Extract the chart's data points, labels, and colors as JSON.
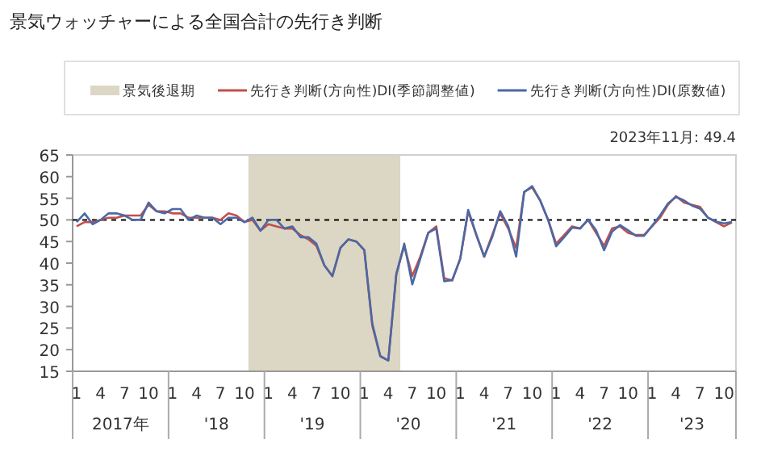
{
  "chart_data": {
    "type": "line",
    "title": "景気ウォッチャーによる全国合計の先行き判断",
    "x": [
      "2017-01",
      "2017-02",
      "2017-03",
      "2017-04",
      "2017-05",
      "2017-06",
      "2017-07",
      "2017-08",
      "2017-09",
      "2017-10",
      "2017-11",
      "2017-12",
      "2018-01",
      "2018-02",
      "2018-03",
      "2018-04",
      "2018-05",
      "2018-06",
      "2018-07",
      "2018-08",
      "2018-09",
      "2018-10",
      "2018-11",
      "2018-12",
      "2019-01",
      "2019-02",
      "2019-03",
      "2019-04",
      "2019-05",
      "2019-06",
      "2019-07",
      "2019-08",
      "2019-09",
      "2019-10",
      "2019-11",
      "2019-12",
      "2020-01",
      "2020-02",
      "2020-03",
      "2020-04",
      "2020-05",
      "2020-06",
      "2020-07",
      "2020-08",
      "2020-09",
      "2020-10",
      "2020-11",
      "2020-12",
      "2021-01",
      "2021-02",
      "2021-03",
      "2021-04",
      "2021-05",
      "2021-06",
      "2021-07",
      "2021-08",
      "2021-09",
      "2021-10",
      "2021-11",
      "2021-12",
      "2022-01",
      "2022-02",
      "2022-03",
      "2022-04",
      "2022-05",
      "2022-06",
      "2022-07",
      "2022-08",
      "2022-09",
      "2022-10",
      "2022-11",
      "2022-12",
      "2023-01",
      "2023-02",
      "2023-03",
      "2023-04",
      "2023-05",
      "2023-06",
      "2023-07",
      "2023-08",
      "2023-09",
      "2023-10",
      "2023-11"
    ],
    "xlim": [
      "2017-01",
      "2023-11"
    ],
    "xticks": [
      {
        "value": "2017-01",
        "label": "1"
      },
      {
        "value": "2017-04",
        "label": "4"
      },
      {
        "value": "2017-07",
        "label": "7"
      },
      {
        "value": "2017-10",
        "label": "10"
      },
      {
        "value": "2018-01",
        "label": "1"
      },
      {
        "value": "2018-04",
        "label": "4"
      },
      {
        "value": "2018-07",
        "label": "7"
      },
      {
        "value": "2018-10",
        "label": "10"
      },
      {
        "value": "2019-01",
        "label": "1"
      },
      {
        "value": "2019-04",
        "label": "4"
      },
      {
        "value": "2019-07",
        "label": "7"
      },
      {
        "value": "2019-10",
        "label": "10"
      },
      {
        "value": "2020-01",
        "label": "1"
      },
      {
        "value": "2020-04",
        "label": "4"
      },
      {
        "value": "2020-07",
        "label": "7"
      },
      {
        "value": "2020-10",
        "label": "10"
      },
      {
        "value": "2021-01",
        "label": "1"
      },
      {
        "value": "2021-04",
        "label": "4"
      },
      {
        "value": "2021-07",
        "label": "7"
      },
      {
        "value": "2021-10",
        "label": "10"
      },
      {
        "value": "2022-01",
        "label": "1"
      },
      {
        "value": "2022-04",
        "label": "4"
      },
      {
        "value": "2022-07",
        "label": "7"
      },
      {
        "value": "2022-10",
        "label": "10"
      },
      {
        "value": "2023-01",
        "label": "1"
      },
      {
        "value": "2023-04",
        "label": "4"
      },
      {
        "value": "2023-07",
        "label": "7"
      },
      {
        "value": "2023-10",
        "label": "10"
      }
    ],
    "ylim": [
      15,
      65
    ],
    "yticks": [
      15,
      20,
      25,
      30,
      35,
      40,
      45,
      50,
      55,
      60,
      65
    ],
    "legend": "top",
    "marker": "none",
    "line_style": "solid",
    "series": [
      {
        "name": "先行き判断(方向性)DI(季節調整値)",
        "color": "#c0504d",
        "values": [
          48.5,
          49.5,
          49.5,
          50,
          50.5,
          50.5,
          51,
          51,
          51,
          53.5,
          52,
          52,
          51.5,
          51.5,
          50.5,
          50.5,
          50.5,
          50.5,
          50,
          51.5,
          51,
          49.5,
          50,
          47.5,
          49,
          48.5,
          48,
          48,
          46.5,
          45.5,
          44,
          39.5,
          37,
          43.5,
          45.5,
          45,
          43,
          25.5,
          18.5,
          17.5,
          37.5,
          44,
          37,
          41.5,
          47,
          48.5,
          36.5,
          36,
          41,
          52,
          46.5,
          41.5,
          46.5,
          51.5,
          48,
          43.5,
          56.5,
          57.5,
          54.5,
          50,
          44.5,
          46.5,
          48.5,
          48,
          50,
          47,
          44,
          48,
          48.5,
          47,
          46.5,
          46.5,
          48.5,
          50.5,
          53.5,
          55.5,
          54,
          53.5,
          53,
          50.5,
          49.5,
          48.5,
          49.4
        ]
      },
      {
        "name": "先行き判断(方向性)DI(原数値)",
        "color": "#4a69a5",
        "values": [
          49.5,
          51.5,
          49,
          50,
          51.5,
          51.5,
          51,
          50,
          50,
          54,
          52,
          51.5,
          52.5,
          52.5,
          50,
          51,
          50.5,
          50.5,
          49,
          50.5,
          50.5,
          49.5,
          50.5,
          47.5,
          50,
          50,
          48,
          48.5,
          46,
          46,
          44.5,
          39.5,
          37,
          43.5,
          45.5,
          45,
          43,
          26,
          18.5,
          17.5,
          37.4,
          44.5,
          35.1,
          41,
          47,
          48,
          35.8,
          36.1,
          41,
          52.3,
          46.7,
          41.5,
          46,
          52,
          48.6,
          41.5,
          56.4,
          57.8,
          54.5,
          50,
          43.9,
          46,
          48.2,
          48,
          50.1,
          47.6,
          43,
          47.3,
          48.8,
          47.6,
          46.3,
          46.3,
          48.6,
          51,
          53.8,
          55.3,
          54.5,
          53.3,
          52.6,
          50.5,
          49.6,
          49.2,
          49.5
        ]
      }
    ],
    "bands": [
      {
        "axis": "x",
        "from": "2018-11",
        "to": "2020-05",
        "label": "景気後退期",
        "color": "#dcd6c4"
      }
    ],
    "ref_lines": [
      {
        "axis": "y",
        "value": 50,
        "color": "#000000",
        "line_style": "dashed"
      }
    ],
    "annotations": [
      "2023年11月: 49.4",
      "2017年",
      "'18",
      "'19",
      "'20",
      "'21",
      "'22",
      "'23"
    ]
  }
}
